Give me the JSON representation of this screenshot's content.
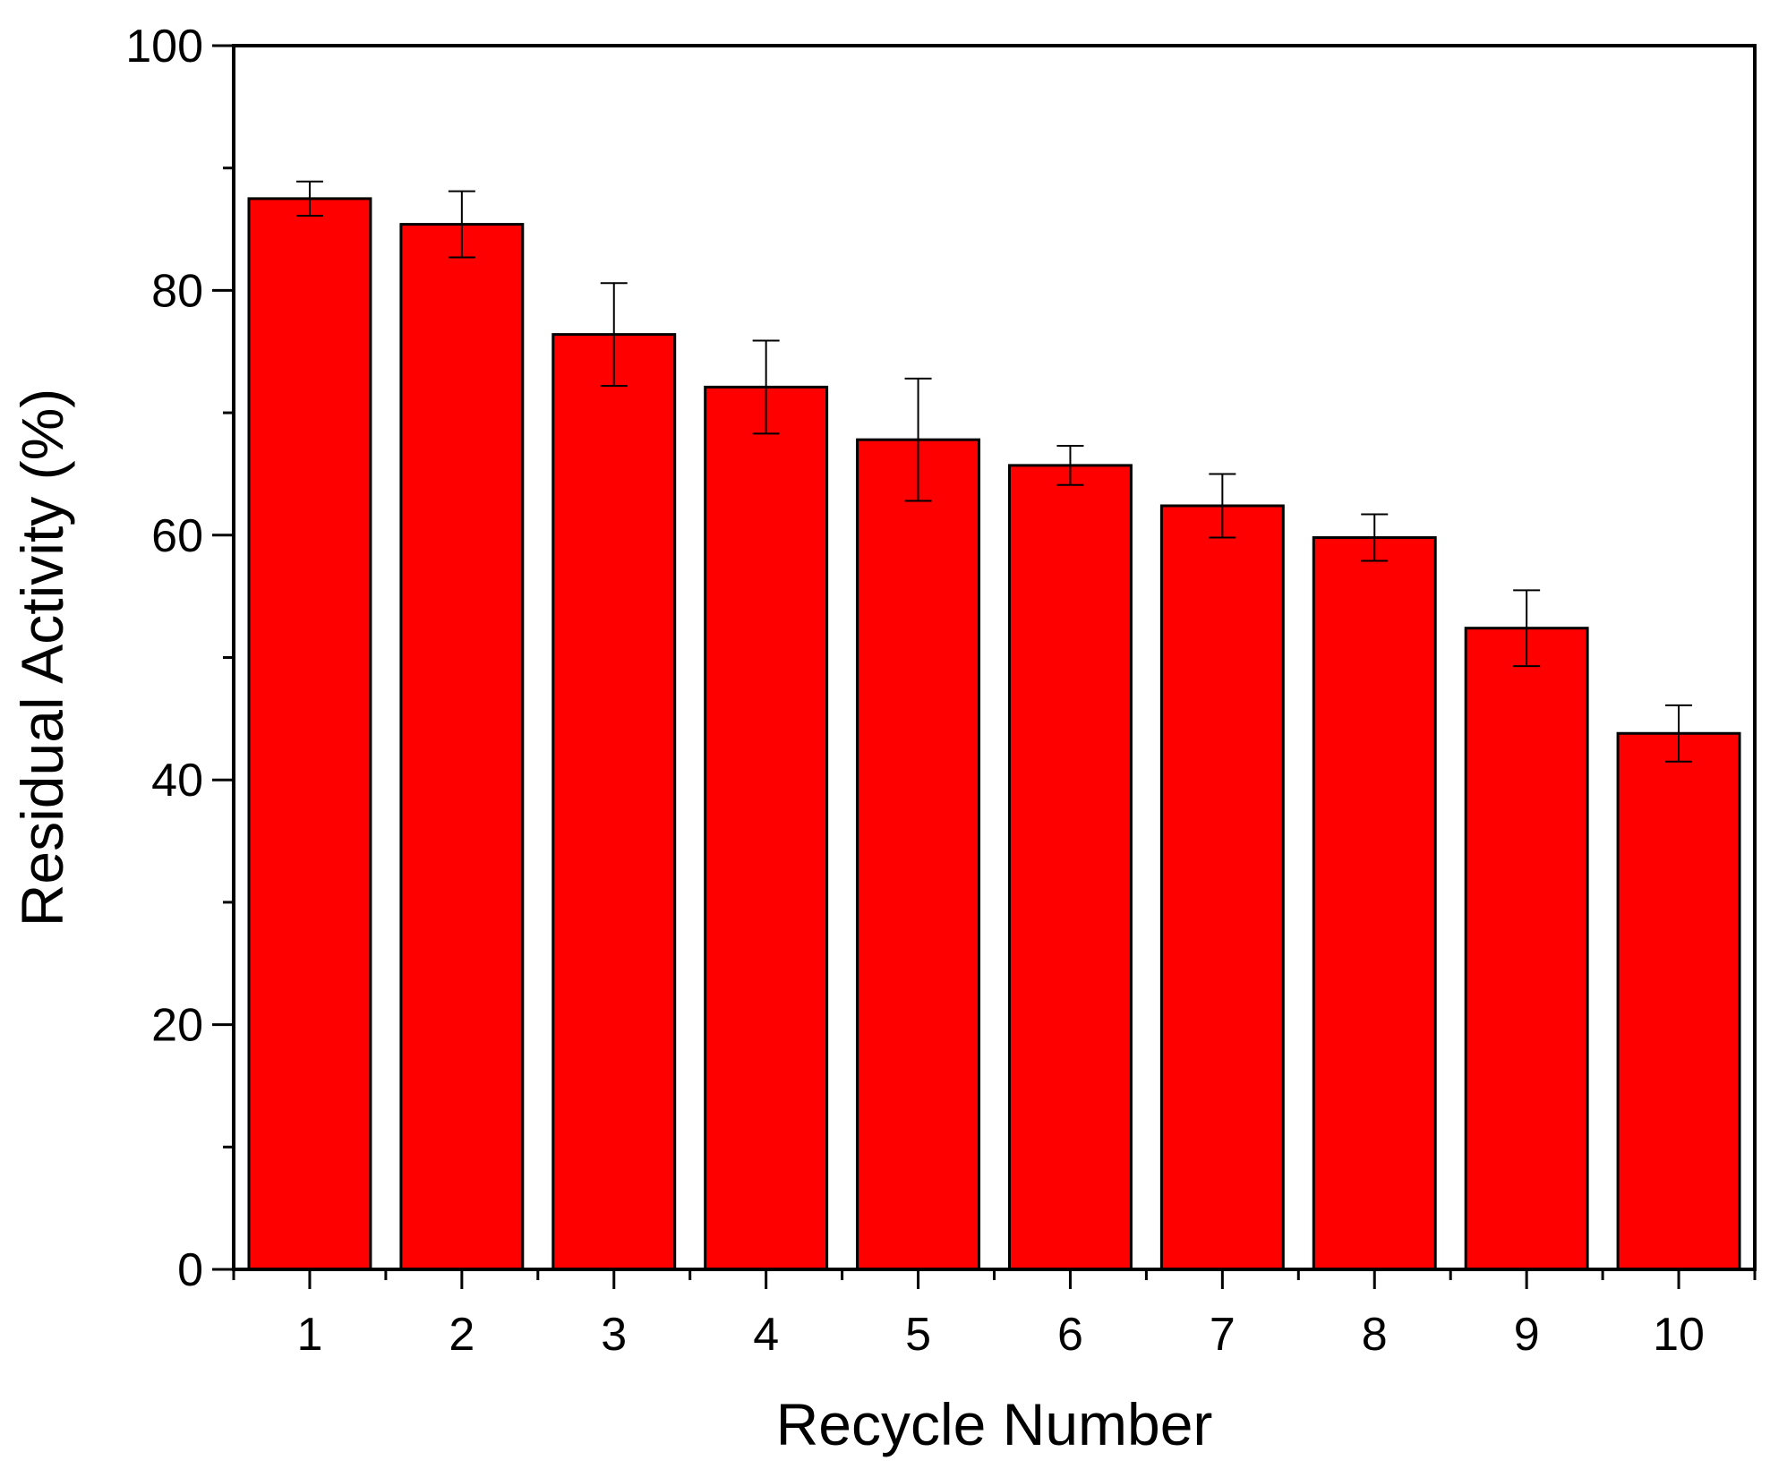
{
  "chart_data": {
    "type": "bar",
    "title": "",
    "xlabel": "Recycle Number",
    "ylabel": "Residual Activity (%)",
    "ylim": [
      0,
      100
    ],
    "yticks": [
      0,
      20,
      40,
      60,
      80,
      100
    ],
    "categories": [
      "1",
      "2",
      "3",
      "4",
      "5",
      "6",
      "7",
      "8",
      "9",
      "10"
    ],
    "values": [
      87.5,
      85.4,
      76.4,
      72.1,
      67.8,
      65.7,
      62.4,
      59.8,
      52.4,
      43.8
    ],
    "errors": [
      1.4,
      2.7,
      4.2,
      3.8,
      5.0,
      1.6,
      2.6,
      1.9,
      3.1,
      2.3
    ],
    "grid": false,
    "legend": "none",
    "bar_color": "#ff0000",
    "edge_color": "#000000"
  }
}
